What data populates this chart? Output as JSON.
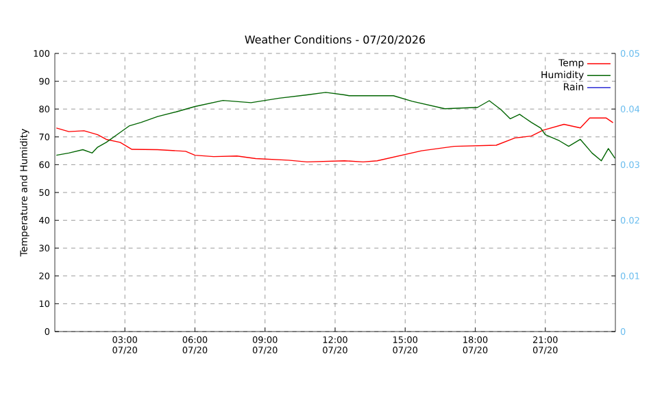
{
  "chart_data": {
    "type": "line",
    "title": "Weather Conditions - 07/20/2026",
    "ylabel": "Temperature and Humidity",
    "xlim": [
      "2026-07-20T00:00",
      "2026-07-21T00:00"
    ],
    "ylim": [
      0,
      100
    ],
    "y2lim": [
      0,
      0.05
    ],
    "xticks": [
      {
        "value": "2026-07-20T03:00",
        "label": "03:00 07/20"
      },
      {
        "value": "2026-07-20T06:00",
        "label": "06:00 07/20"
      },
      {
        "value": "2026-07-20T09:00",
        "label": "09:00 07/20"
      },
      {
        "value": "2026-07-20T12:00",
        "label": "12:00 07/20"
      },
      {
        "value": "2026-07-20T15:00",
        "label": "15:00 07/20"
      },
      {
        "value": "2026-07-20T18:00",
        "label": "18:00 07/20"
      },
      {
        "value": "2026-07-20T21:00",
        "label": "21:00 07/20"
      }
    ],
    "yticks": [
      0,
      10,
      20,
      30,
      40,
      50,
      60,
      70,
      80,
      90,
      100
    ],
    "y2ticks": [
      0,
      0.01,
      0.02,
      0.03,
      0.04,
      0.05
    ],
    "grid": true,
    "legend": "top right",
    "marker": "none",
    "line_style": "solid",
    "series": [
      {
        "name": "Temp",
        "color": "#ff0000",
        "x": [
          "2026-07-20T00:04",
          "2026-07-20T00:36",
          "2026-07-20T01:15",
          "2026-07-20T01:50",
          "2026-07-20T02:12",
          "2026-07-20T02:48",
          "2026-07-20T03:18",
          "2026-07-20T04:24",
          "2026-07-20T05:36",
          "2026-07-20T06:00",
          "2026-07-20T06:48",
          "2026-07-20T07:48",
          "2026-07-20T08:36",
          "2026-07-20T10:00",
          "2026-07-20T10:48",
          "2026-07-20T12:24",
          "2026-07-20T13:12",
          "2026-07-20T13:48",
          "2026-07-20T15:42",
          "2026-07-20T17:06",
          "2026-07-20T18:54",
          "2026-07-20T19:42",
          "2026-07-20T20:24",
          "2026-07-20T20:54",
          "2026-07-20T21:48",
          "2026-07-20T22:30",
          "2026-07-20T22:54",
          "2026-07-20T23:36",
          "2026-07-20T23:54"
        ],
        "values": [
          73.2,
          71.9,
          72.2,
          70.8,
          69.1,
          68,
          65.5,
          65.4,
          64.8,
          63.4,
          62.9,
          63.1,
          62.2,
          61.6,
          61,
          61.4,
          61,
          61.4,
          65,
          66.6,
          67,
          69.6,
          70.3,
          72.4,
          74.5,
          73.2,
          76.8,
          76.8,
          75.1
        ]
      },
      {
        "name": "Humidity",
        "color": "#006400",
        "x": [
          "2026-07-20T00:04",
          "2026-07-20T00:36",
          "2026-07-20T01:12",
          "2026-07-20T01:36",
          "2026-07-20T01:50",
          "2026-07-20T02:12",
          "2026-07-20T02:48",
          "2026-07-20T03:12",
          "2026-07-20T03:42",
          "2026-07-20T04:24",
          "2026-07-20T05:12",
          "2026-07-20T06:00",
          "2026-07-20T07:12",
          "2026-07-20T08:24",
          "2026-07-20T09:36",
          "2026-07-20T10:48",
          "2026-07-20T11:36",
          "2026-07-20T12:24",
          "2026-07-20T12:36",
          "2026-07-20T14:30",
          "2026-07-20T15:18",
          "2026-07-20T16:42",
          "2026-07-20T18:06",
          "2026-07-20T18:36",
          "2026-07-20T19:06",
          "2026-07-20T19:30",
          "2026-07-20T19:54",
          "2026-07-20T20:24",
          "2026-07-20T20:48",
          "2026-07-20T21:00",
          "2026-07-20T21:36",
          "2026-07-20T22:00",
          "2026-07-20T22:30",
          "2026-07-20T23:00",
          "2026-07-20T23:24",
          "2026-07-20T23:42",
          "2026-07-20T23:59"
        ],
        "values": [
          63.4,
          64.2,
          65.4,
          64.2,
          66.3,
          68,
          71.6,
          74,
          75.2,
          77.3,
          79,
          80.9,
          83.1,
          82.3,
          83.9,
          85.1,
          86,
          85.1,
          84.8,
          84.8,
          82.8,
          80.1,
          80.6,
          83,
          79.8,
          76.5,
          78.1,
          75.2,
          73.2,
          70.8,
          68.6,
          66.6,
          69.1,
          64.2,
          61.4,
          65.8,
          62.3
        ]
      },
      {
        "name": "Rain",
        "color": "#0000cc",
        "axis": "y2"
      }
    ]
  }
}
